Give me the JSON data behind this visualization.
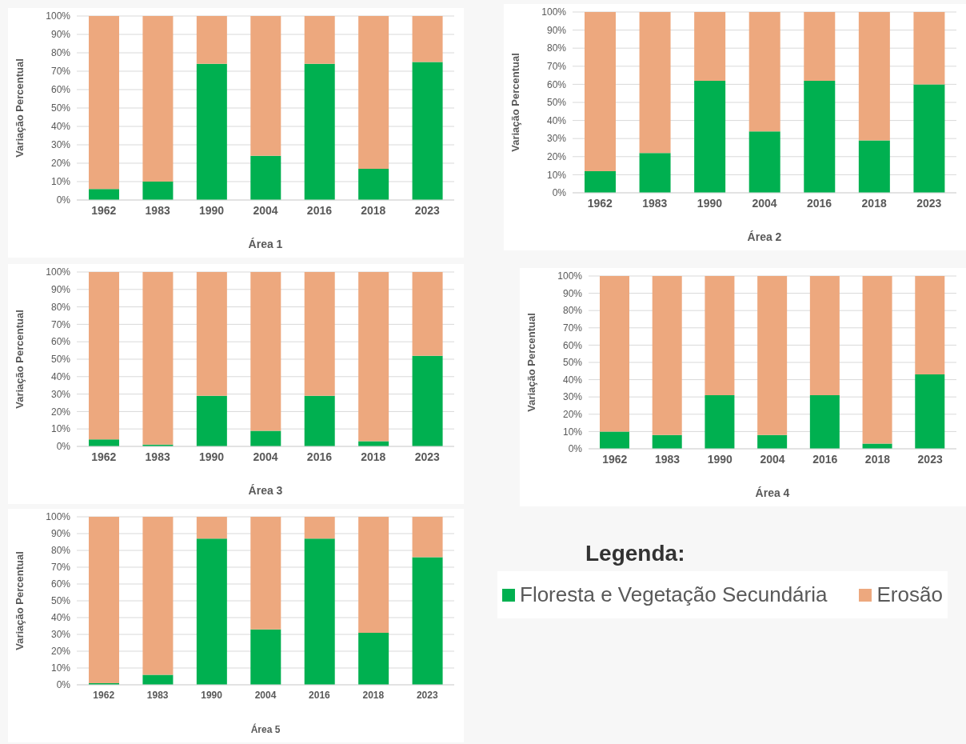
{
  "chart_data": [
    {
      "type": "bar",
      "stacked": true,
      "xlabel": "Área 1",
      "ylabel": "Variação Percentual",
      "categories": [
        "1962",
        "1983",
        "1990",
        "2004",
        "2016",
        "2018",
        "2023"
      ],
      "series": [
        {
          "color": "#00b050",
          "values": [
            6,
            10,
            74,
            24,
            74,
            17,
            75
          ]
        },
        {
          "color": "#eda87e",
          "values": [
            94,
            90,
            26,
            76,
            26,
            83,
            25
          ]
        }
      ],
      "ylim": [
        0,
        100
      ],
      "yticks": [
        {
          "value": 0,
          "label": "0%"
        },
        {
          "value": 10,
          "label": "10%"
        },
        {
          "value": 20,
          "label": "20%"
        },
        {
          "value": 30,
          "label": "30%"
        },
        {
          "value": 40,
          "label": "40%"
        },
        {
          "value": 50,
          "label": "50%"
        },
        {
          "value": 60,
          "label": "60%"
        },
        {
          "value": 70,
          "label": "70%"
        },
        {
          "value": 80,
          "label": "80%"
        },
        {
          "value": 90,
          "label": "90%"
        },
        {
          "value": 100,
          "label": "100%"
        }
      ],
      "grid": "y"
    },
    {
      "type": "bar",
      "stacked": true,
      "xlabel": "Área 2",
      "ylabel": "Variação Percentual",
      "categories": [
        "1962",
        "1983",
        "1990",
        "2004",
        "2016",
        "2018",
        "2023"
      ],
      "series": [
        {
          "color": "#00b050",
          "values": [
            12,
            22,
            62,
            34,
            62,
            29,
            60
          ]
        },
        {
          "color": "#eda87e",
          "values": [
            88,
            78,
            38,
            66,
            38,
            71,
            40
          ]
        }
      ],
      "ylim": [
        0,
        100
      ],
      "yticks": [
        {
          "value": 0,
          "label": "0%"
        },
        {
          "value": 10,
          "label": "10%"
        },
        {
          "value": 20,
          "label": "20%"
        },
        {
          "value": 30,
          "label": "30%"
        },
        {
          "value": 40,
          "label": "40%"
        },
        {
          "value": 50,
          "label": "50%"
        },
        {
          "value": 60,
          "label": "60%"
        },
        {
          "value": 70,
          "label": "70%"
        },
        {
          "value": 80,
          "label": "80%"
        },
        {
          "value": 90,
          "label": "90%"
        },
        {
          "value": 100,
          "label": "100%"
        }
      ],
      "grid": "y"
    },
    {
      "type": "bar",
      "stacked": true,
      "xlabel": "Área 3",
      "ylabel": "Variação Percentual",
      "categories": [
        "1962",
        "1983",
        "1990",
        "2004",
        "2016",
        "2018",
        "2023"
      ],
      "series": [
        {
          "color": "#00b050",
          "values": [
            4,
            1,
            29,
            9,
            29,
            3,
            52
          ]
        },
        {
          "color": "#eda87e",
          "values": [
            96,
            99,
            71,
            91,
            71,
            97,
            48
          ]
        }
      ],
      "ylim": [
        0,
        100
      ],
      "yticks": [
        {
          "value": 0,
          "label": "0%"
        },
        {
          "value": 10,
          "label": "10%"
        },
        {
          "value": 20,
          "label": "20%"
        },
        {
          "value": 30,
          "label": "30%"
        },
        {
          "value": 40,
          "label": "40%"
        },
        {
          "value": 50,
          "label": "50%"
        },
        {
          "value": 60,
          "label": "60%"
        },
        {
          "value": 70,
          "label": "70%"
        },
        {
          "value": 80,
          "label": "80%"
        },
        {
          "value": 90,
          "label": "90%"
        },
        {
          "value": 100,
          "label": "100%"
        }
      ],
      "grid": "y"
    },
    {
      "type": "bar",
      "stacked": true,
      "xlabel": "Área 4",
      "ylabel": "Variação Percentual",
      "categories": [
        "1962",
        "1983",
        "1990",
        "2004",
        "2016",
        "2018",
        "2023"
      ],
      "series": [
        {
          "color": "#00b050",
          "values": [
            10,
            8,
            31,
            8,
            31,
            3,
            43
          ]
        },
        {
          "color": "#eda87e",
          "values": [
            90,
            92,
            69,
            92,
            69,
            97,
            57
          ]
        }
      ],
      "ylim": [
        0,
        100
      ],
      "yticks": [
        {
          "value": 0,
          "label": "0%"
        },
        {
          "value": 10,
          "label": "10%"
        },
        {
          "value": 20,
          "label": "20%"
        },
        {
          "value": 30,
          "label": "30%"
        },
        {
          "value": 40,
          "label": "40%"
        },
        {
          "value": 50,
          "label": "50%"
        },
        {
          "value": 60,
          "label": "60%"
        },
        {
          "value": 70,
          "label": "70%"
        },
        {
          "value": 80,
          "label": "80%"
        },
        {
          "value": 90,
          "label": "90%"
        },
        {
          "value": 100,
          "label": "100%"
        }
      ],
      "grid": "y"
    },
    {
      "type": "bar",
      "stacked": true,
      "xlabel": "Área 5",
      "ylabel": "Variação Percentual",
      "categories": [
        "1962",
        "1983",
        "1990",
        "2004",
        "2016",
        "2018",
        "2023"
      ],
      "series": [
        {
          "name": "Floresta e Vegetação Secundária",
          "color": "#00b050",
          "values": [
            1,
            6,
            87,
            33,
            87,
            31,
            76
          ]
        },
        {
          "name": "Erosão",
          "color": "#eda87e",
          "values": [
            99,
            94,
            13,
            67,
            13,
            69,
            24
          ]
        }
      ],
      "ylim": [
        0,
        100
      ],
      "yticks": [
        {
          "value": 0,
          "label": "0%"
        },
        {
          "value": 10,
          "label": "10%"
        },
        {
          "value": 20,
          "label": "20%"
        },
        {
          "value": 30,
          "label": "30%"
        },
        {
          "value": 40,
          "label": "40%"
        },
        {
          "value": 50,
          "label": "50%"
        },
        {
          "value": 60,
          "label": "60%"
        },
        {
          "value": 70,
          "label": "70%"
        },
        {
          "value": 80,
          "label": "80%"
        },
        {
          "value": 90,
          "label": "90%"
        },
        {
          "value": 100,
          "label": "100%"
        }
      ],
      "grid": "y",
      "legend": "right",
      "legend_title": "Legenda:"
    }
  ]
}
